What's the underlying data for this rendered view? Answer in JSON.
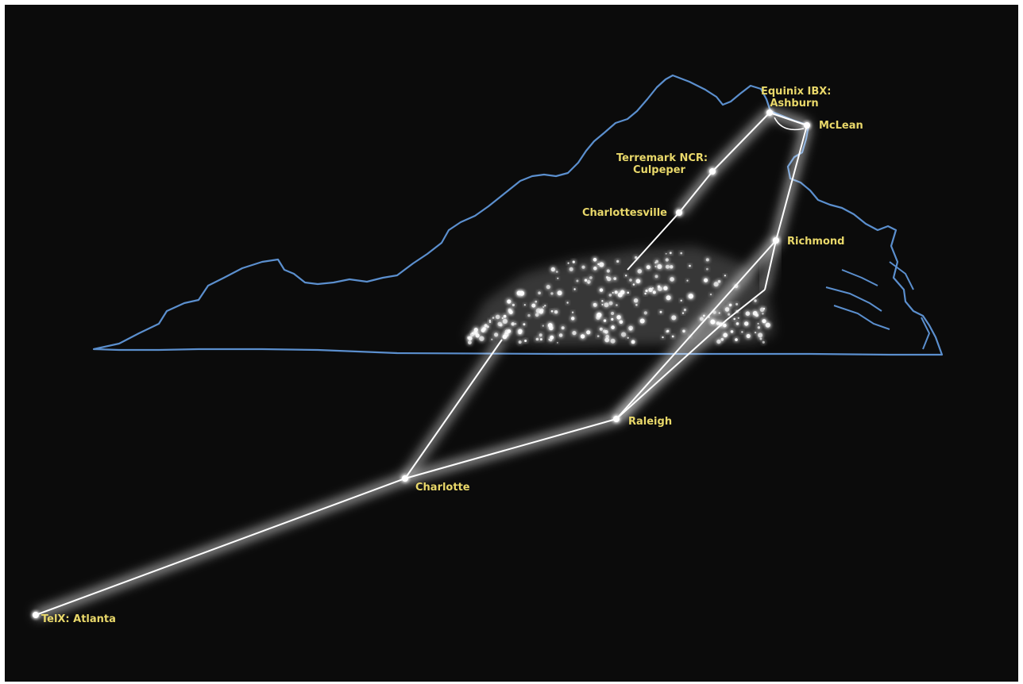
{
  "map": {
    "background": "#0b0b0b",
    "border_color": "#5b8fce",
    "glow_color": "#ffffff",
    "label_color": "#e9d86a",
    "label_font": "bold",
    "nodes": [
      {
        "id": "ashburn",
        "label_lines": [
          "Equinix IBX:",
          "Ashburn"
        ]
      },
      {
        "id": "mclean",
        "label_lines": [
          "McLean"
        ]
      },
      {
        "id": "culpeper",
        "label_lines": [
          "Terremark NCR:",
          "Culpeper"
        ]
      },
      {
        "id": "charlottesville",
        "label_lines": [
          "Charlottesville"
        ]
      },
      {
        "id": "richmond",
        "label_lines": [
          "Richmond"
        ]
      },
      {
        "id": "raleigh",
        "label_lines": [
          "Raleigh"
        ]
      },
      {
        "id": "charlotte",
        "label_lines": [
          "Charlotte"
        ]
      },
      {
        "id": "atlanta",
        "label_lines": [
          "TelX: Atlanta"
        ]
      }
    ],
    "routes": [
      [
        "ashburn",
        "mclean"
      ],
      [
        "ashburn",
        "culpeper"
      ],
      [
        "culpeper",
        "charlottesville"
      ],
      [
        "mclean",
        "richmond"
      ],
      [
        "richmond",
        "raleigh"
      ],
      [
        "raleigh",
        "charlotte"
      ],
      [
        "charlotte",
        "atlanta"
      ]
    ]
  }
}
